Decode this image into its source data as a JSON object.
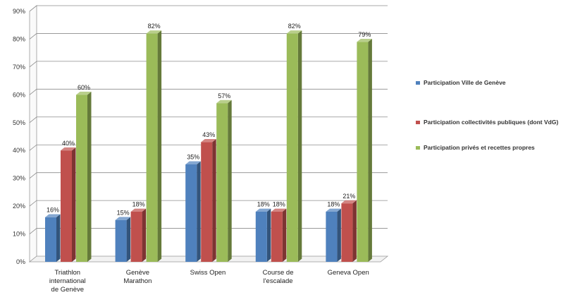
{
  "chart_data": {
    "type": "bar",
    "categories": [
      "Triathlon international de Genève",
      "Genève Marathon",
      "Swiss Open",
      "Course de l'escalade",
      "Geneva Open"
    ],
    "series": [
      {
        "name": "Participation Ville de Genève",
        "values": [
          16,
          15,
          35,
          18,
          18
        ],
        "color": "#4f81bd"
      },
      {
        "name": "Participation collectivités publiques (dont VdG)",
        "values": [
          40,
          18,
          43,
          18,
          21
        ],
        "color": "#c0504d"
      },
      {
        "name": "Participation privés et recettes propres",
        "values": [
          60,
          82,
          57,
          82,
          79
        ],
        "color": "#9bbb59"
      }
    ],
    "data_labels": [
      [
        "16%",
        "15%",
        "35%",
        "18%",
        "18%"
      ],
      [
        "40%",
        "18%",
        "43%",
        "18%",
        "21%"
      ],
      [
        "60%",
        "82%",
        "57%",
        "82%",
        "79%"
      ]
    ],
    "y_ticks": [
      "0%",
      "10%",
      "20%",
      "30%",
      "40%",
      "50%",
      "60%",
      "70%",
      "80%",
      "90%"
    ],
    "ylim": [
      0,
      90
    ],
    "grid": true,
    "legend_position": "right",
    "title": "",
    "xlabel": "",
    "ylabel": ""
  }
}
